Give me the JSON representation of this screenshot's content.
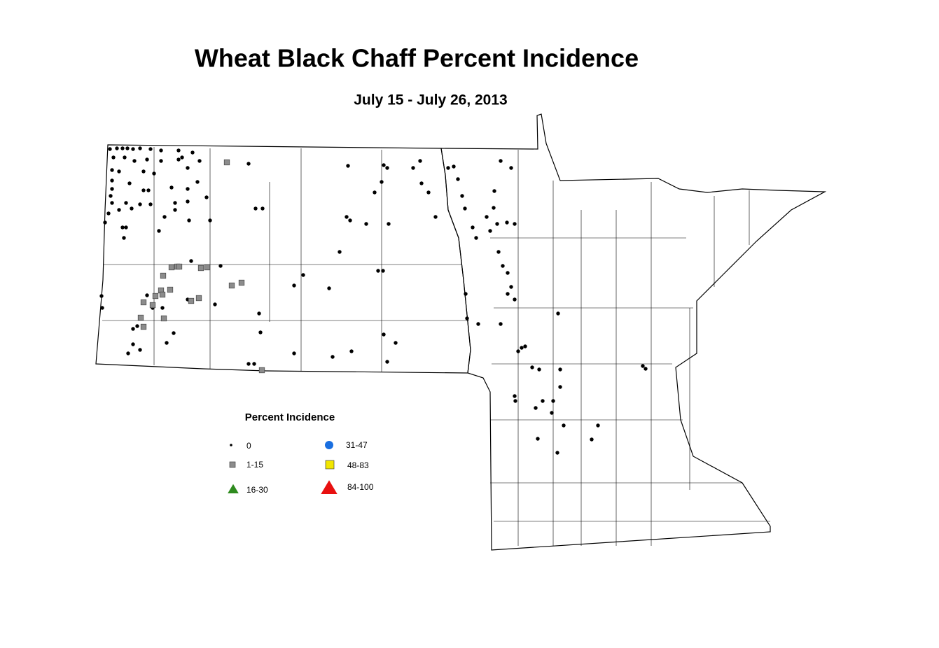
{
  "title": "Wheat Black Chaff Percent Incidence",
  "subtitle": "July 15 - July 26, 2013",
  "legend": {
    "title": "Percent Incidence",
    "items": [
      {
        "label": "0",
        "shape": "dot",
        "color": "#000000"
      },
      {
        "label": "1-15",
        "shape": "square",
        "color": "#8c8c8c"
      },
      {
        "label": "16-30",
        "shape": "triangle",
        "color": "#2e8b1e"
      },
      {
        "label": "31-47",
        "shape": "circle",
        "color": "#1a6fe0"
      },
      {
        "label": "48-83",
        "shape": "square",
        "color": "#f2e600"
      },
      {
        "label": "84-100",
        "shape": "triangle",
        "color": "#e81010"
      }
    ]
  }
}
